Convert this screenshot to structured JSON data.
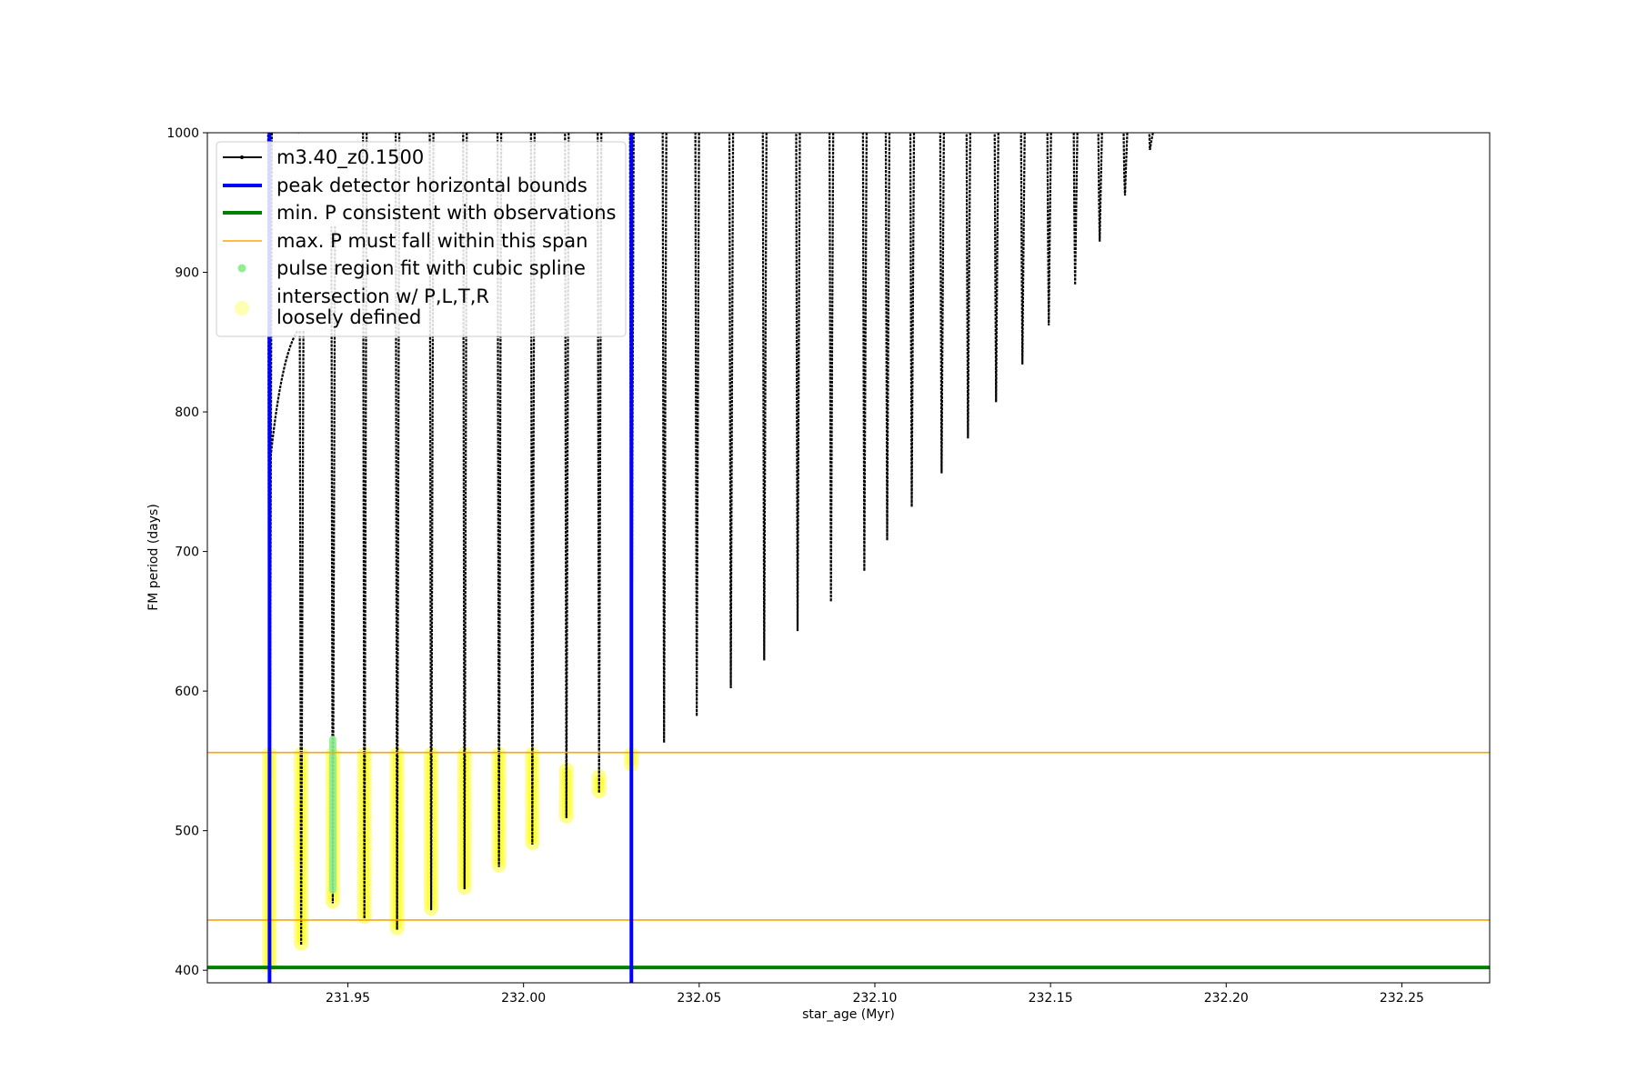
{
  "chart_data": {
    "type": "line",
    "title": "",
    "xlabel": "star_age (Myr)",
    "ylabel": "FM period (days)",
    "xlim": [
      231.91,
      232.275
    ],
    "ylim": [
      391,
      1000
    ],
    "xticks": [
      231.95,
      232.0,
      232.05,
      232.1,
      232.15,
      232.2,
      232.25
    ],
    "xtick_labels": [
      "231.95",
      "232.00",
      "232.05",
      "232.10",
      "232.15",
      "232.20",
      "232.25"
    ],
    "yticks": [
      400,
      500,
      600,
      700,
      800,
      900,
      1000
    ],
    "ytick_labels": [
      "400",
      "500",
      "600",
      "700",
      "800",
      "900",
      "1000"
    ],
    "grid": false,
    "legend_position": "top-left",
    "colors": {
      "model_track": "#000000",
      "peak_bounds": "#0000ff",
      "min_period": "#008000",
      "max_span": "#ffa500",
      "spline_fit": "#90ee90",
      "intersection": "#ffff00",
      "greyed_track": "#c8c8c8"
    },
    "legend": [
      {
        "key": "model_track",
        "label": "m3.40_z0.1500",
        "marker": "line-dot"
      },
      {
        "key": "peak_bounds",
        "label": "peak detector horizontal bounds",
        "marker": "thick-line"
      },
      {
        "key": "min_period",
        "label": "min. P consistent with observations",
        "marker": "thick-line"
      },
      {
        "key": "max_span",
        "label": "max. P must fall within this span",
        "marker": "thin-line"
      },
      {
        "key": "spline_fit",
        "label": "pulse region fit with cubic spline",
        "marker": "dot"
      },
      {
        "key": "intersection",
        "label": "intersection w/ P,L,T,R\nloosely defined",
        "marker": "big-dot"
      }
    ],
    "vertical_lines": [
      {
        "key": "peak_bounds",
        "x": 231.9277
      },
      {
        "key": "peak_bounds",
        "x": 232.0307
      }
    ],
    "horizontal_lines": [
      {
        "key": "min_period",
        "y": 402
      },
      {
        "key": "max_span",
        "y": 556
      },
      {
        "key": "max_span",
        "y": 436
      }
    ],
    "series": [
      {
        "name": "m3.40_z0.1500",
        "description_of_values": "pulse cycles: x = star_age (Myr) at base, ymin = minimum FM period (days), ymax = maximum FM period within plot range",
        "pulses": [
          {
            "x": 231.9277,
            "ymin": 402,
            "ymax": 1000
          },
          {
            "x": 231.9367,
            "ymin": 418,
            "ymax": 858
          },
          {
            "x": 231.9457,
            "ymin": 448,
            "ymax": 933
          },
          {
            "x": 231.9547,
            "ymin": 437,
            "ymax": 1000
          },
          {
            "x": 231.964,
            "ymin": 429,
            "ymax": 1000
          },
          {
            "x": 231.9737,
            "ymin": 443,
            "ymax": 1000
          },
          {
            "x": 231.9832,
            "ymin": 458,
            "ymax": 1000
          },
          {
            "x": 231.993,
            "ymin": 474,
            "ymax": 1000
          },
          {
            "x": 232.0025,
            "ymin": 490,
            "ymax": 1000
          },
          {
            "x": 232.0122,
            "ymin": 509,
            "ymax": 1000
          },
          {
            "x": 232.0215,
            "ymin": 527,
            "ymax": 1000
          },
          {
            "x": 232.0307,
            "ymin": 546,
            "ymax": 1000
          },
          {
            "x": 232.04,
            "ymin": 563,
            "ymax": 1000
          },
          {
            "x": 232.0493,
            "ymin": 582,
            "ymax": 1000
          },
          {
            "x": 232.059,
            "ymin": 602,
            "ymax": 1000
          },
          {
            "x": 232.0685,
            "ymin": 622,
            "ymax": 1000
          },
          {
            "x": 232.078,
            "ymin": 643,
            "ymax": 1000
          },
          {
            "x": 232.0875,
            "ymin": 664,
            "ymax": 1000
          },
          {
            "x": 232.097,
            "ymin": 686,
            "ymax": 1000
          },
          {
            "x": 232.1035,
            "ymin": 708,
            "ymax": 1000
          },
          {
            "x": 232.1105,
            "ymin": 732,
            "ymax": 1000
          },
          {
            "x": 232.119,
            "ymin": 756,
            "ymax": 1000
          },
          {
            "x": 232.1265,
            "ymin": 781,
            "ymax": 1000
          },
          {
            "x": 232.1345,
            "ymin": 807,
            "ymax": 1000
          },
          {
            "x": 232.142,
            "ymin": 834,
            "ymax": 1000
          },
          {
            "x": 232.1495,
            "ymin": 862,
            "ymax": 1000
          },
          {
            "x": 232.157,
            "ymin": 891,
            "ymax": 1000
          },
          {
            "x": 232.164,
            "ymin": 922,
            "ymax": 1000
          },
          {
            "x": 232.1712,
            "ymin": 955,
            "ymax": 1000
          },
          {
            "x": 232.1785,
            "ymin": 991,
            "ymax": 1000
          }
        ]
      },
      {
        "name": "intersection w/ P,L,T,R\nloosely defined",
        "description_of_values": "yellow marker spans: x = star_age (Myr), y_range = [low, high] FM period (days)",
        "spans": [
          {
            "x": 231.9277,
            "y_range": [
              402,
              556
            ]
          },
          {
            "x": 231.9367,
            "y_range": [
              418,
              556
            ]
          },
          {
            "x": 231.9457,
            "y_range": [
              448,
              556
            ]
          },
          {
            "x": 231.9547,
            "y_range": [
              437,
              556
            ]
          },
          {
            "x": 231.964,
            "y_range": [
              429,
              556
            ]
          },
          {
            "x": 231.9737,
            "y_range": [
              443,
              556
            ]
          },
          {
            "x": 231.9832,
            "y_range": [
              458,
              556
            ]
          },
          {
            "x": 231.993,
            "y_range": [
              474,
              556
            ]
          },
          {
            "x": 232.0025,
            "y_range": [
              490,
              556
            ]
          },
          {
            "x": 232.0122,
            "y_range": [
              509,
              545
            ]
          },
          {
            "x": 232.0215,
            "y_range": [
              527,
              540
            ]
          },
          {
            "x": 232.0307,
            "y_range": [
              546,
              556
            ]
          }
        ]
      },
      {
        "name": "pulse region fit with cubic spline",
        "description_of_values": "green markers: x = star_age (Myr), y_range = [low, high] FM period (days)",
        "spans": [
          {
            "x": 231.9457,
            "y_range": [
              455,
              568
            ]
          }
        ]
      }
    ]
  }
}
